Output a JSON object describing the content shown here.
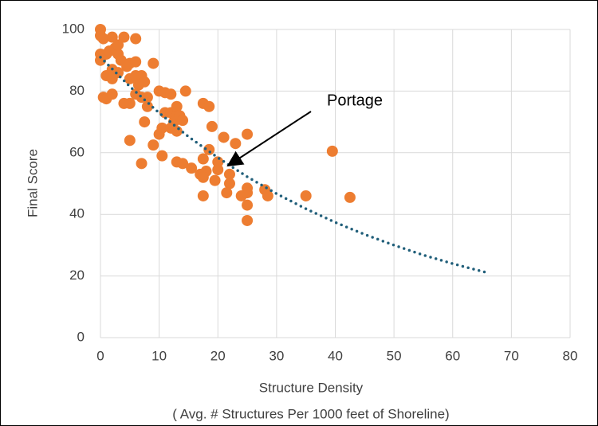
{
  "chart_data": {
    "type": "scatter",
    "ylabel": "Final Score",
    "xlabel": [
      "Structure Density",
      "( Avg. # Structures Per 1000 feet of Shoreline)"
    ],
    "annotation": "Portage",
    "xlim": [
      0,
      80
    ],
    "xticks": [
      0,
      10,
      20,
      30,
      40,
      50,
      60,
      70,
      80
    ],
    "ylim": [
      0,
      100
    ],
    "yticks": [
      0,
      20,
      40,
      60,
      80,
      100
    ],
    "grid": true,
    "color": "#ed7d31",
    "x": [
      0,
      0,
      0.5,
      2,
      4,
      6,
      0,
      0,
      1,
      1.5,
      2.5,
      3,
      3.5,
      3,
      4.5,
      5,
      6,
      9,
      1,
      2,
      3,
      5,
      6,
      7,
      7.5,
      6.5,
      0.5,
      1,
      2,
      2,
      4,
      5,
      6,
      7,
      8,
      8,
      7.5,
      10,
      11,
      12,
      14.5,
      10.5,
      11,
      12,
      13,
      13,
      12.5,
      13.5,
      14,
      12,
      13,
      10,
      9,
      5,
      7,
      10.5,
      13,
      14,
      15.5,
      17,
      18,
      17.5,
      17.5,
      18.5,
      19,
      17.5,
      18.5,
      21,
      23,
      25,
      20,
      20,
      22,
      22,
      19.5,
      21.5,
      17.5,
      24,
      25,
      25,
      25,
      25,
      28,
      28.5,
      35,
      42.5,
      39.5
    ],
    "values": [
      100,
      98,
      97,
      97.5,
      97.5,
      97,
      92,
      90,
      92,
      93,
      94,
      92,
      90,
      95,
      88,
      89,
      89.5,
      89,
      85,
      87,
      86,
      84,
      85,
      85,
      83,
      82,
      78,
      77.5,
      79,
      84,
      76,
      76,
      79,
      78,
      78,
      75,
      70,
      80,
      79.5,
      79,
      80,
      68,
      73,
      73,
      75,
      72,
      70,
      72,
      70.5,
      68,
      67,
      66,
      62.5,
      64,
      56.5,
      59,
      57,
      56.5,
      55,
      53,
      54,
      52,
      58,
      61,
      68.5,
      76,
      75,
      65,
      63,
      66,
      57,
      54.5,
      53,
      50,
      51,
      47,
      46,
      46,
      48.5,
      47,
      43,
      38,
      48,
      46,
      46,
      45.5,
      60.5
    ],
    "trendline": {
      "color": "#215f7a",
      "x": [
        0,
        5,
        10,
        15,
        20,
        25,
        30,
        35,
        40,
        45,
        50,
        55,
        60,
        66
      ],
      "values": [
        91,
        81.5,
        72.9,
        65.2,
        58.4,
        52.2,
        46.7,
        41.8,
        37.4,
        33.5,
        30,
        26.8,
        24,
        21
      ]
    }
  }
}
